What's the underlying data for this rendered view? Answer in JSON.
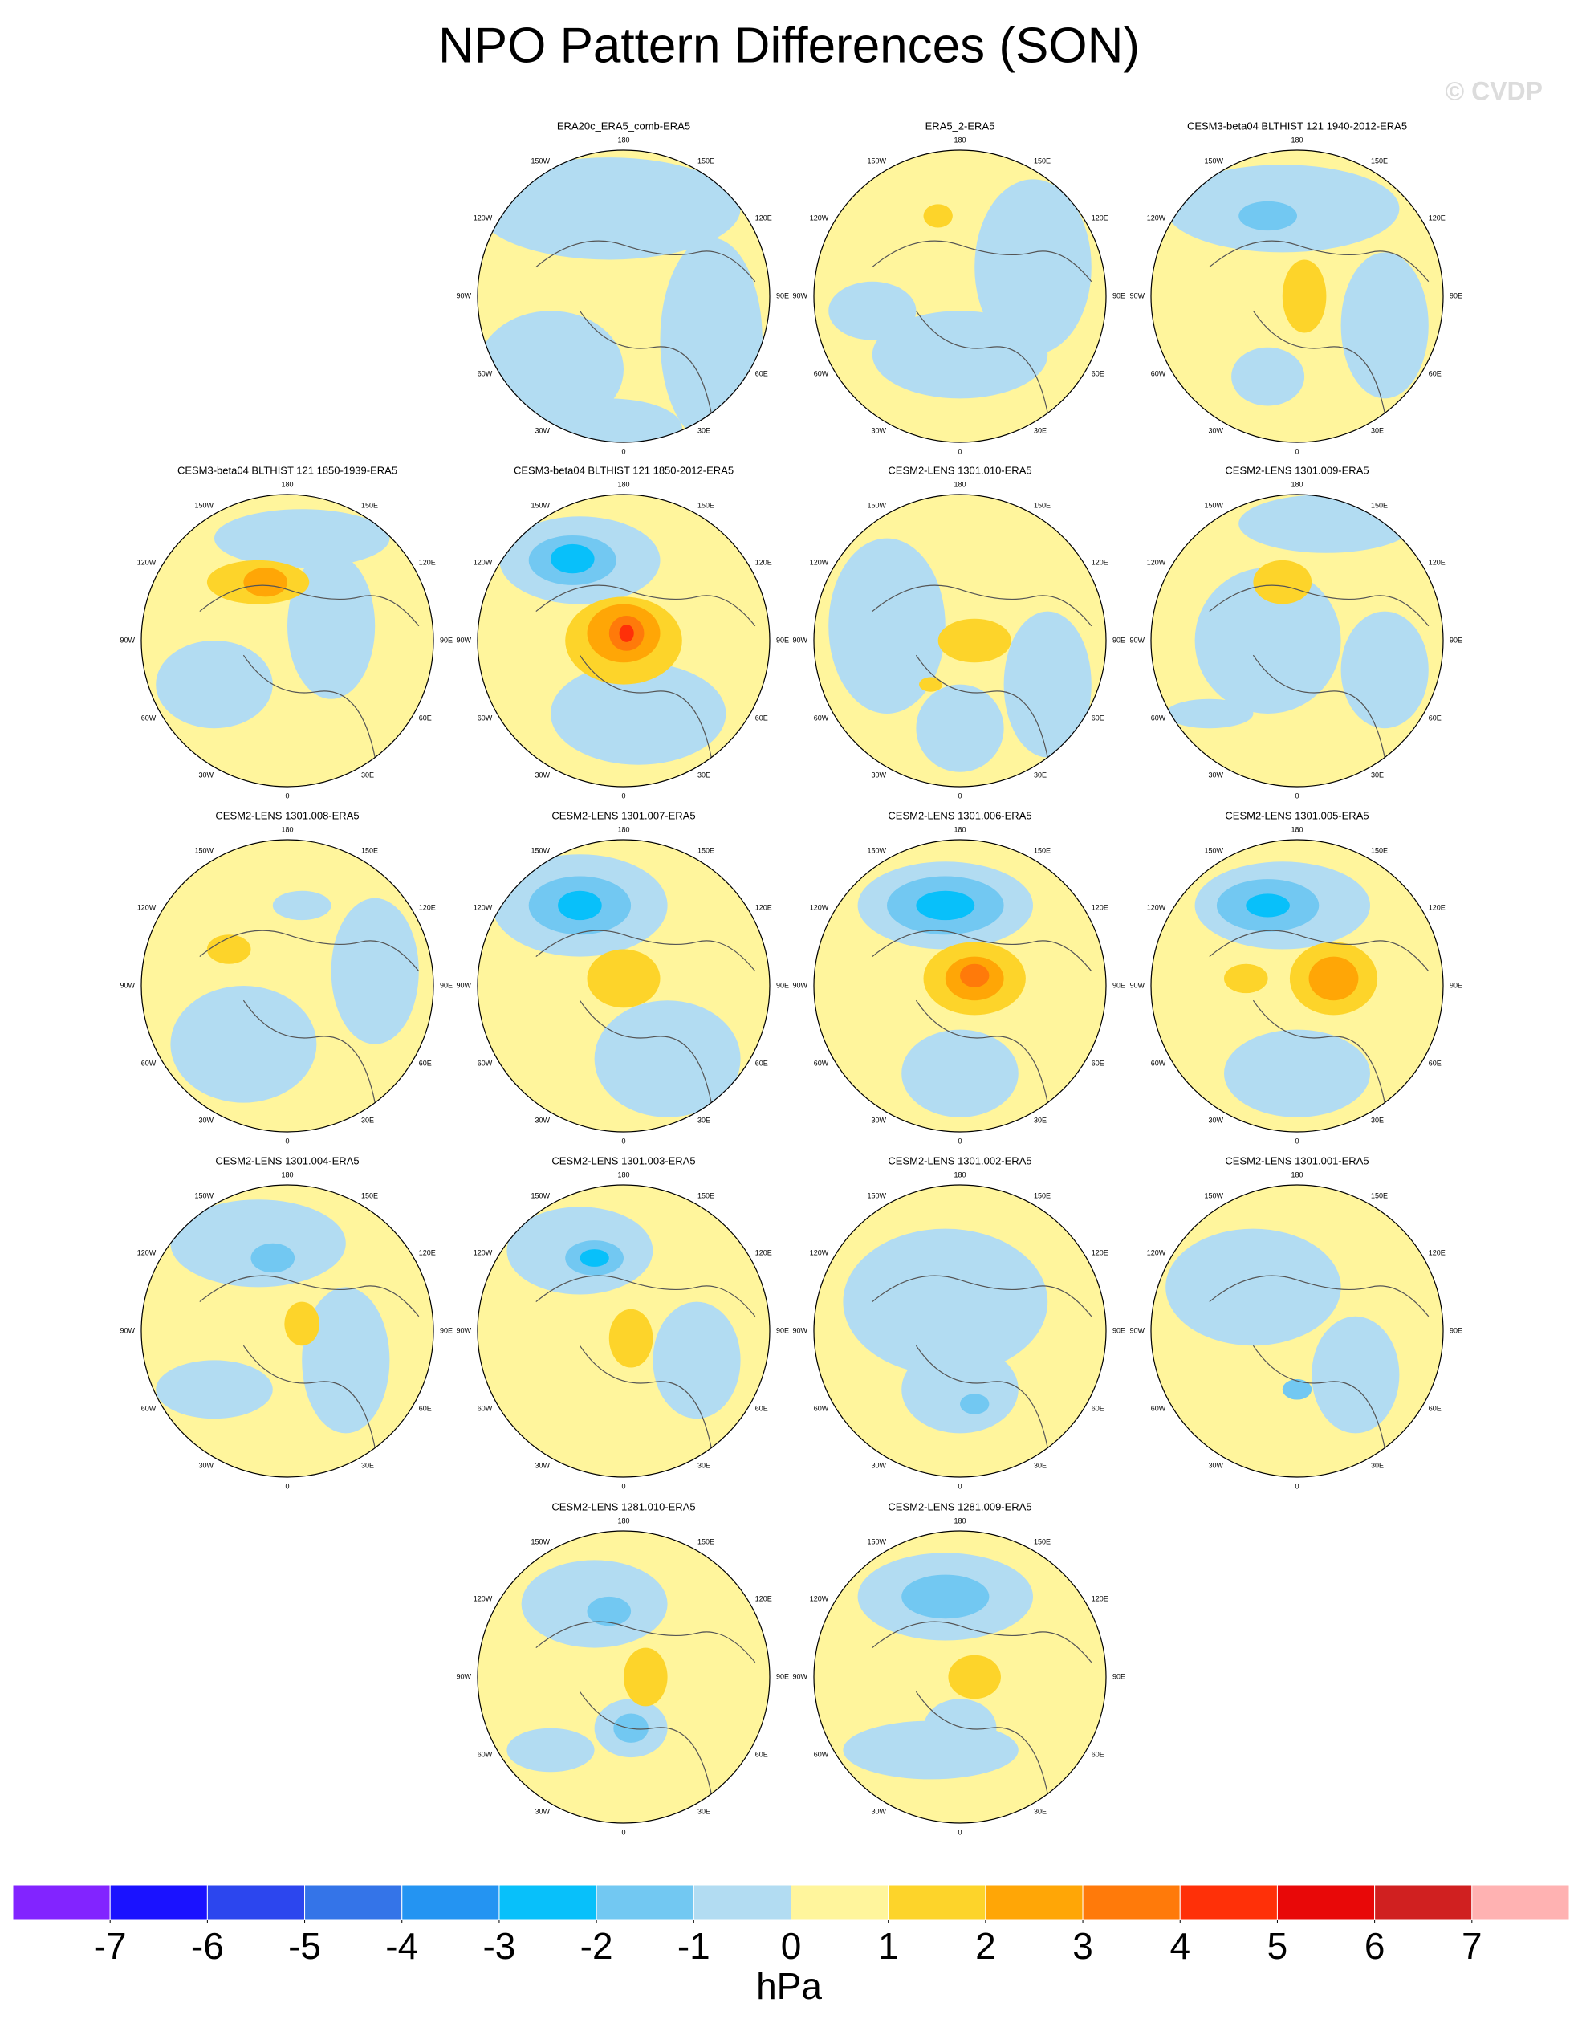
{
  "title": "NPO Pattern Differences (SON)",
  "watermark": "© CVDP",
  "longitude_labels": [
    "180",
    "150E",
    "120E",
    "90E",
    "60E",
    "30E",
    "0",
    "30W",
    "60W",
    "90W",
    "120W",
    "150W"
  ],
  "panels": [
    {
      "title": "ERA20c_ERA5_comb-ERA5"
    },
    {
      "title": "ERA5_2-ERA5"
    },
    {
      "title": "CESM3-beta04 BLTHIST 121 1940-2012-ERA5"
    },
    {
      "title": "CESM3-beta04 BLTHIST 121 1850-1939-ERA5"
    },
    {
      "title": "CESM3-beta04 BLTHIST 121 1850-2012-ERA5"
    },
    {
      "title": "CESM2-LENS 1301.010-ERA5"
    },
    {
      "title": "CESM2-LENS 1301.009-ERA5"
    },
    {
      "title": "CESM2-LENS 1301.008-ERA5"
    },
    {
      "title": "CESM2-LENS 1301.007-ERA5"
    },
    {
      "title": "CESM2-LENS 1301.006-ERA5"
    },
    {
      "title": "CESM2-LENS 1301.005-ERA5"
    },
    {
      "title": "CESM2-LENS 1301.004-ERA5"
    },
    {
      "title": "CESM2-LENS 1301.003-ERA5"
    },
    {
      "title": "CESM2-LENS 1301.002-ERA5"
    },
    {
      "title": "CESM2-LENS 1301.001-ERA5"
    },
    {
      "title": "CESM2-LENS 1281.010-ERA5"
    },
    {
      "title": "CESM2-LENS 1281.009-ERA5"
    }
  ],
  "colorbar": {
    "levels": [
      -7,
      -6,
      -5,
      -4,
      -3,
      -2,
      -1,
      0,
      1,
      2,
      3,
      4,
      5,
      6,
      7
    ],
    "colors": [
      "#8224ff",
      "#1a12ff",
      "#2c46ee",
      "#3474e8",
      "#2494f2",
      "#08c0fa",
      "#72c8f2",
      "#b2dcf2",
      "#fff59c",
      "#fdd42a",
      "#ffa606",
      "#ff7a0a",
      "#ff3008",
      "#e80808",
      "#d02020",
      "#ffb2b2"
    ],
    "label": "hPa"
  }
}
